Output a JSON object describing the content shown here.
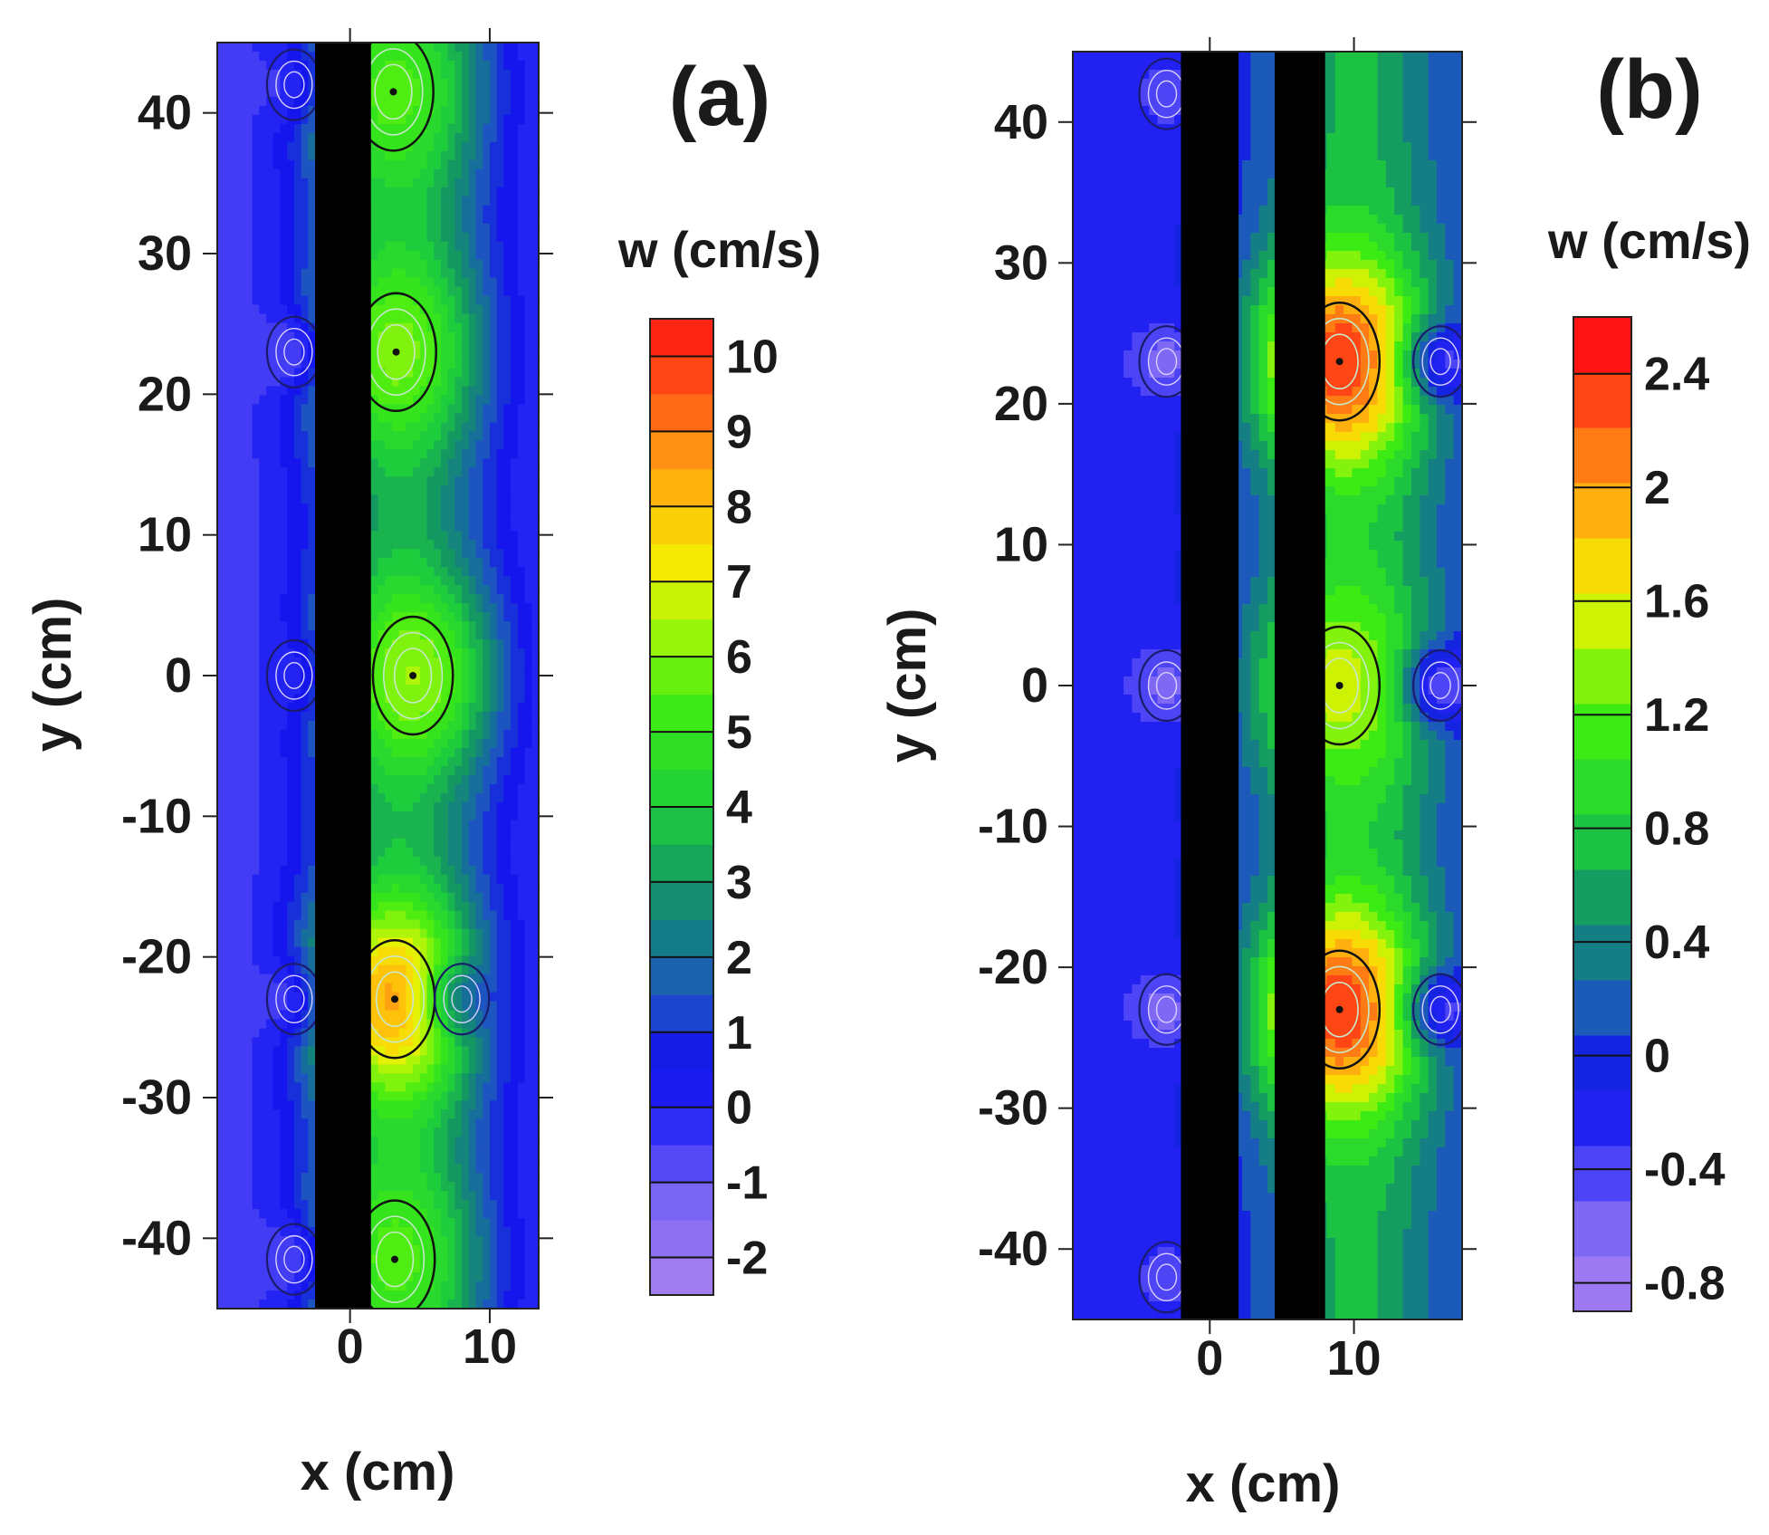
{
  "chart_data": [
    {
      "type": "heatmap",
      "panel_label": "(a)",
      "title": "",
      "xlabel": "x (cm)",
      "ylabel": "y (cm)",
      "xlim": [
        -9.5,
        13.5
      ],
      "ylim": [
        -45,
        45
      ],
      "x_ticks": [
        0,
        10
      ],
      "y_ticks": [
        40,
        30,
        20,
        10,
        0,
        -10,
        -20,
        -30,
        -40
      ],
      "obstacles_x": [
        [
          -2.5,
          1.5
        ]
      ],
      "peaks": [
        {
          "x": 3.1,
          "y": 41.5,
          "w": 5.5
        },
        {
          "x": 3.3,
          "y": 23,
          "w": 6
        },
        {
          "x": 4.5,
          "y": 0,
          "w": 6.3
        },
        {
          "x": 3.2,
          "y": -23,
          "w": 8.5
        },
        {
          "x": 3.2,
          "y": -41.5,
          "w": 5.5
        }
      ],
      "troughs": [
        {
          "x": -4,
          "y": 42,
          "w": -1
        },
        {
          "x": -4,
          "y": 23,
          "w": -1.5
        },
        {
          "x": -4,
          "y": 0,
          "w": -0.5
        },
        {
          "x": -4,
          "y": -23,
          "w": -1.5
        },
        {
          "x": -4,
          "y": -41.5,
          "w": -1.5
        },
        {
          "x": 8,
          "y": -23,
          "w": -1
        }
      ],
      "colorbar": {
        "title": "w (cm/s)",
        "min": -2.5,
        "max": 10.5,
        "step": 0.5,
        "labels": [
          "10",
          "9",
          "8",
          "7",
          "6",
          "5",
          "4",
          "3",
          "2",
          "1",
          "0",
          "-1",
          "-2"
        ],
        "label_values": [
          10,
          9,
          8,
          7,
          6,
          5,
          4,
          3,
          2,
          1,
          0,
          -1,
          -2
        ]
      }
    },
    {
      "type": "heatmap",
      "panel_label": "(b)",
      "title": "",
      "xlabel": "x (cm)",
      "ylabel": "y (cm)",
      "xlim": [
        -9.5,
        17.5
      ],
      "ylim": [
        -45,
        45
      ],
      "x_ticks": [
        0,
        10
      ],
      "y_ticks": [
        40,
        30,
        20,
        10,
        0,
        -10,
        -20,
        -30,
        -40
      ],
      "obstacles_x": [
        [
          -2,
          2
        ],
        [
          4.5,
          8
        ]
      ],
      "peaks": [
        {
          "x": 9,
          "y": 23,
          "w": 2.5
        },
        {
          "x": 9,
          "y": 0,
          "w": 1.6
        },
        {
          "x": 9,
          "y": -23,
          "w": 2.5
        }
      ],
      "troughs": [
        {
          "x": -3,
          "y": 42,
          "w": -0.4
        },
        {
          "x": -3,
          "y": 23,
          "w": -0.6
        },
        {
          "x": -3,
          "y": 0,
          "w": -0.6
        },
        {
          "x": -3,
          "y": -23,
          "w": -0.6
        },
        {
          "x": -3,
          "y": -42,
          "w": -0.4
        },
        {
          "x": 16,
          "y": 23,
          "w": -0.7
        },
        {
          "x": 16,
          "y": 0,
          "w": -0.7
        },
        {
          "x": 16,
          "y": -23,
          "w": -0.7
        }
      ],
      "colorbar": {
        "title": "w (cm/s)",
        "min": -0.9,
        "max": 2.6,
        "step": 0.2,
        "labels": [
          "2.4",
          "2",
          "1.6",
          "1.2",
          "0.8",
          "0.4",
          "0",
          "-0.4",
          "-0.8"
        ],
        "label_values": [
          2.4,
          2.0,
          1.6,
          1.2,
          0.8,
          0.4,
          0.0,
          -0.4,
          -0.8
        ]
      }
    }
  ]
}
